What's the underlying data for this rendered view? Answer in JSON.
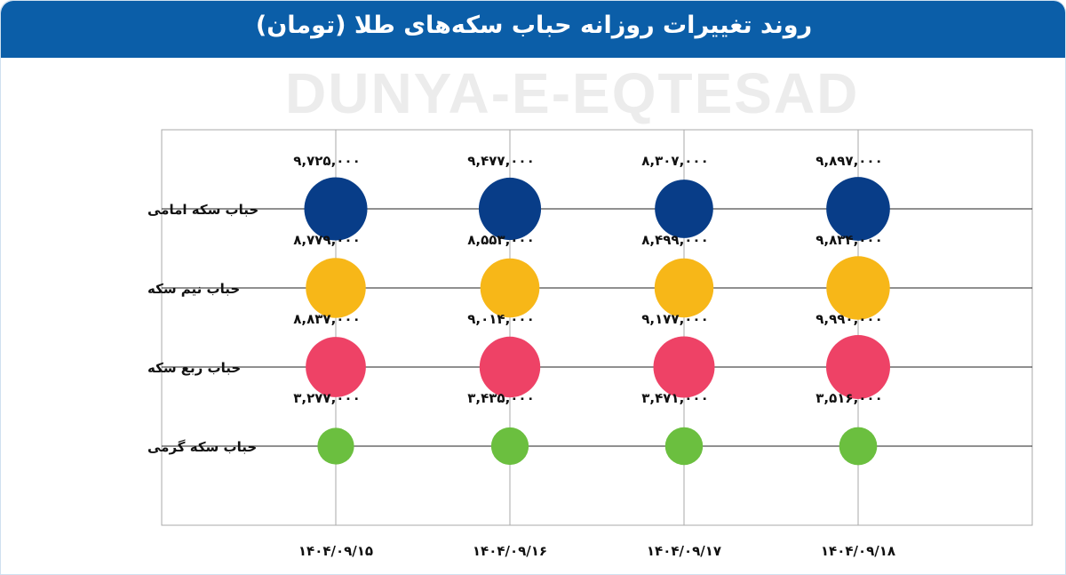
{
  "header": {
    "title": "روند تغییرات روزانه حباب سکه‌های طلا (تومان)"
  },
  "watermark": "DUNYA-E-EQTESAD",
  "chart_data": {
    "type": "scatter",
    "subtype": "bubble",
    "title": "روند تغییرات روزانه حباب سکه‌های طلا (تومان)",
    "categories": [
      "۱۴۰۴/۰۹/۱۵",
      "۱۴۰۴/۰۹/۱۶",
      "۱۴۰۴/۰۹/۱۷",
      "۱۴۰۴/۰۹/۱۸"
    ],
    "grid": true,
    "series": [
      {
        "name": "حباب سکه امامی",
        "color": "#083d88",
        "values": [
          9725000,
          9477000,
          8307000,
          9897000
        ],
        "labels": [
          "۹,۷۲۵,۰۰۰",
          "۹,۴۷۷,۰۰۰",
          "۸,۳۰۷,۰۰۰",
          "۹,۸۹۷,۰۰۰"
        ]
      },
      {
        "name": "حباب نیم سکه",
        "color": "#f7b718",
        "values": [
          8779000,
          8553000,
          8499000,
          9834000
        ],
        "labels": [
          "۸,۷۷۹,۰۰۰",
          "۸,۵۵۳,۰۰۰",
          "۸,۴۹۹,۰۰۰",
          "۹,۸۳۴,۰۰۰"
        ]
      },
      {
        "name": "حباب ربع سکه",
        "color": "#ee4266",
        "values": [
          8837000,
          9014000,
          9177000,
          9990000
        ],
        "labels": [
          "۸,۸۳۷,۰۰۰",
          "۹,۰۱۴,۰۰۰",
          "۹,۱۷۷,۰۰۰",
          "۹,۹۹۰,۰۰۰"
        ]
      },
      {
        "name": "حباب سکه گرمی",
        "color": "#6bbf3f",
        "values": [
          3277000,
          3435000,
          3471000,
          3516000
        ],
        "labels": [
          "۳,۲۷۷,۰۰۰",
          "۳,۴۳۵,۰۰۰",
          "۳,۴۷۱,۰۰۰",
          "۳,۵۱۶,۰۰۰"
        ]
      }
    ]
  }
}
